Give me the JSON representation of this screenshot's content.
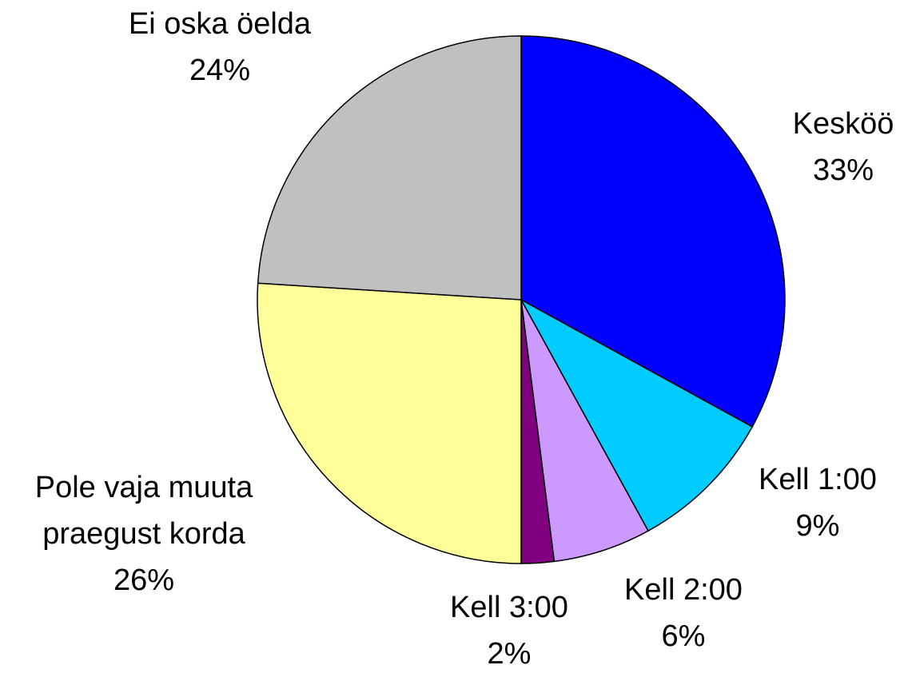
{
  "chart_data": {
    "type": "pie",
    "categories": [
      "Kesköö",
      "Kell 1:00",
      "Kell 2:00",
      "Kell 3:00",
      "Pole vaja muuta praegust korda",
      "Ei oska öelda"
    ],
    "values": [
      33,
      9,
      6,
      2,
      26,
      24
    ],
    "value_labels": [
      "33%",
      "9%",
      "6%",
      "2%",
      "26%",
      "24%"
    ],
    "colors": [
      "#0000FF",
      "#00CCFF",
      "#CC99FF",
      "#800080",
      "#FFFF99",
      "#C0C0C0"
    ]
  }
}
